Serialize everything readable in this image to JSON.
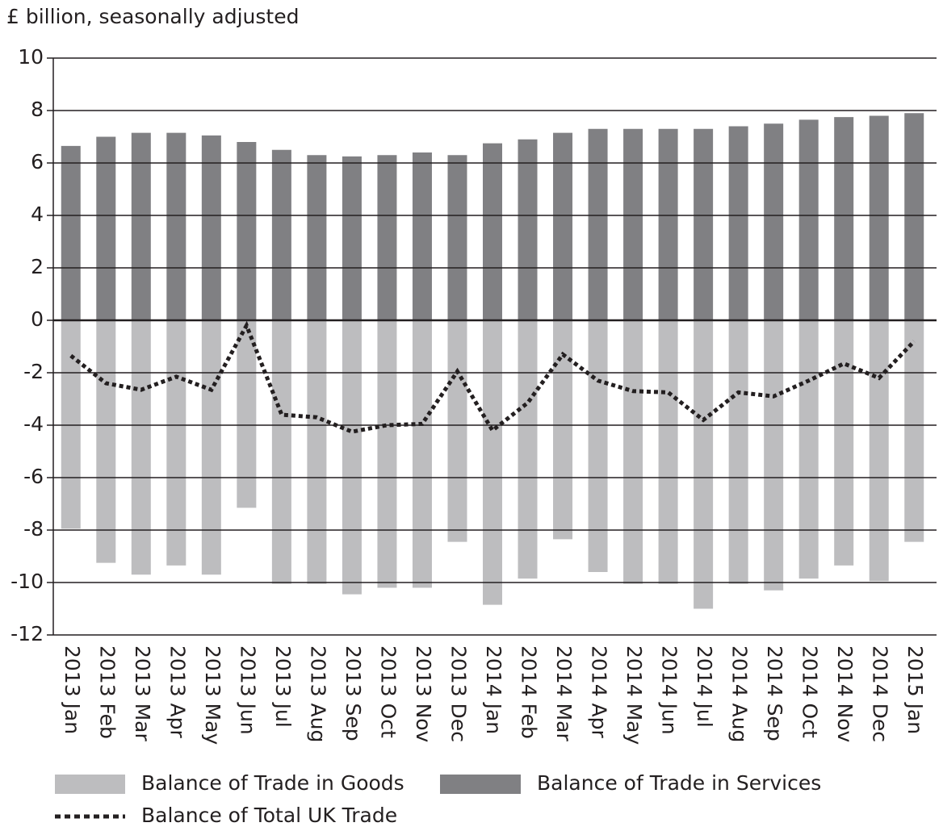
{
  "chart_data": {
    "type": "bar",
    "y_axis_label": "£ billion, seasonally adjusted",
    "categories": [
      "2013 Jan",
      "2013 Feb",
      "2013 Mar",
      "2013 Apr",
      "2013 May",
      "2013 Jun",
      "2013 Jul",
      "2013 Aug",
      "2013 Sep",
      "2013 Oct",
      "2013 Nov",
      "2013 Dec",
      "2014 Jan",
      "2014 Feb",
      "2014 Mar",
      "2014 Apr",
      "2014 May",
      "2014 Jun",
      "2014 Jul",
      "2014 Aug",
      "2014 Sep",
      "2014 Oct",
      "2014 Nov",
      "2014 Dec",
      "2015 Jan"
    ],
    "series": [
      {
        "name": "Balance of Trade in Goods",
        "color": "#bdbdbf",
        "kind": "bar",
        "values": [
          -7.95,
          -9.25,
          -9.7,
          -9.35,
          -9.7,
          -7.15,
          -10.05,
          -10.05,
          -10.45,
          -10.2,
          -10.2,
          -8.45,
          -10.85,
          -9.85,
          -8.35,
          -9.6,
          -10.05,
          -10.05,
          -11.0,
          -10.05,
          -10.3,
          -9.85,
          -9.35,
          -9.95,
          -8.45
        ]
      },
      {
        "name": "Balance of Trade in Services",
        "color": "#808083",
        "kind": "bar",
        "values": [
          6.65,
          7.0,
          7.15,
          7.15,
          7.05,
          6.8,
          6.5,
          6.3,
          6.25,
          6.3,
          6.4,
          6.3,
          6.75,
          6.9,
          7.15,
          7.3,
          7.3,
          7.3,
          7.3,
          7.4,
          7.5,
          7.65,
          7.75,
          7.8,
          7.9
        ]
      },
      {
        "name": "Balance of Total UK Trade",
        "color": "#231f20",
        "kind": "line",
        "values": [
          -1.35,
          -2.4,
          -2.65,
          -2.15,
          -2.65,
          -0.2,
          -3.6,
          -3.7,
          -4.25,
          -4.0,
          -3.95,
          -1.95,
          -4.2,
          -3.15,
          -1.3,
          -2.3,
          -2.7,
          -2.75,
          -3.8,
          -2.75,
          -2.9,
          -2.3,
          -1.65,
          -2.2,
          -0.8
        ]
      }
    ],
    "ylim": [
      -12,
      10
    ],
    "yticks": [
      -12,
      -10,
      -8,
      -6,
      -4,
      -2,
      0,
      2,
      4,
      6,
      8,
      10
    ],
    "grid": true,
    "legend": "bottom"
  }
}
